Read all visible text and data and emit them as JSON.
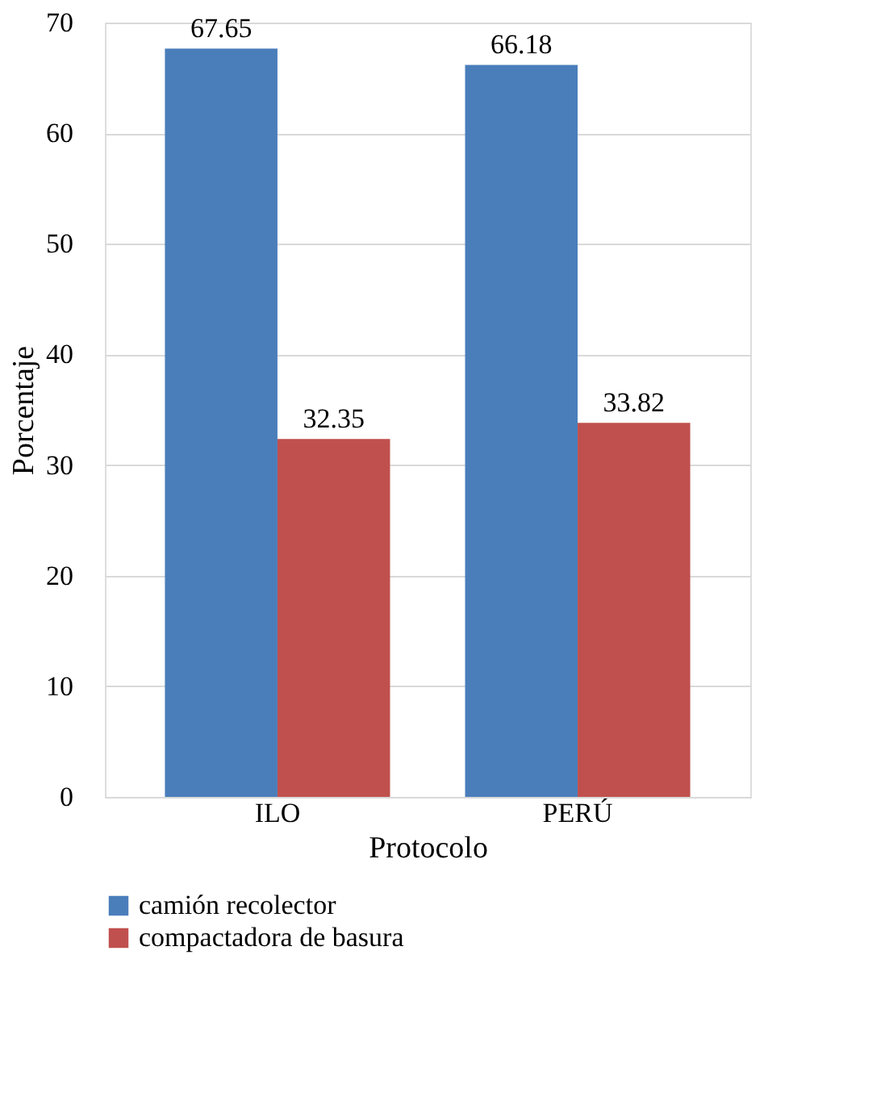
{
  "chart_data": {
    "type": "bar",
    "xlabel": "Protocolo",
    "ylabel": "Porcentaje",
    "categories": [
      "ILO",
      "PERÚ"
    ],
    "series": [
      {
        "name": "camión recolector",
        "color": "#4a7ebb",
        "values": [
          67.65,
          66.18
        ]
      },
      {
        "name": "compactadora de basura",
        "color": "#c0504d",
        "values": [
          32.35,
          33.82
        ]
      }
    ],
    "ylim": [
      0,
      70
    ],
    "yticks": [
      0,
      10,
      20,
      30,
      40,
      50,
      60,
      70
    ],
    "grid": "y",
    "data_labels": true,
    "legend": "bottom"
  }
}
